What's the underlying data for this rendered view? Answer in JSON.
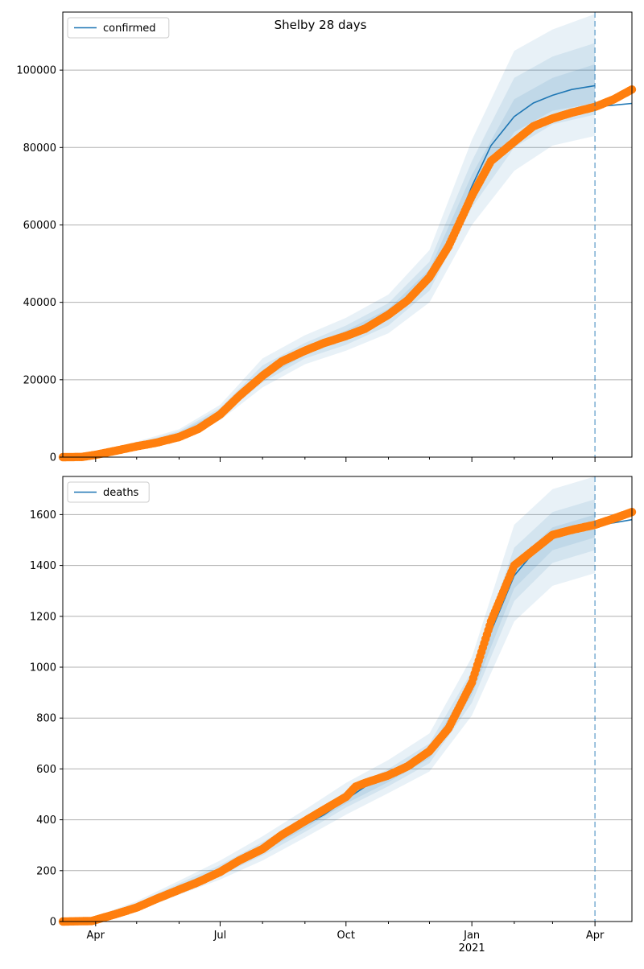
{
  "figure": {
    "title": "Shelby 28 days"
  },
  "chart_data": [
    {
      "type": "line",
      "legend": "confirmed",
      "legend_loc": "upper-left",
      "grid": "y-major",
      "ylim": [
        0,
        115000
      ],
      "yticks": [
        0,
        20000,
        40000,
        60000,
        80000,
        100000
      ],
      "xlim": [
        "2020-03-08",
        "2021-04-28"
      ],
      "forecast_start": "2021-04-01",
      "series": [
        {
          "name": "confirmed",
          "role": "model-median",
          "color": "#1f77b4",
          "points": [
            [
              "2020-03-08",
              0
            ],
            [
              "2020-04-01",
              700
            ],
            [
              "2020-05-01",
              3200
            ],
            [
              "2020-06-01",
              6000
            ],
            [
              "2020-06-15",
              8000
            ],
            [
              "2020-07-01",
              11500
            ],
            [
              "2020-07-15",
              16000
            ],
            [
              "2020-08-01",
              21000
            ],
            [
              "2020-08-15",
              24500
            ],
            [
              "2020-09-01",
              27200
            ],
            [
              "2020-09-15",
              29200
            ],
            [
              "2020-10-01",
              31500
            ],
            [
              "2020-10-15",
              33700
            ],
            [
              "2020-11-01",
              36800
            ],
            [
              "2020-11-15",
              40500
            ],
            [
              "2020-12-01",
              46500
            ],
            [
              "2020-12-15",
              55000
            ],
            [
              "2021-01-01",
              70000
            ],
            [
              "2021-01-15",
              80500
            ],
            [
              "2021-02-01",
              88000
            ],
            [
              "2021-02-15",
              91500
            ],
            [
              "2021-03-01",
              93500
            ],
            [
              "2021-03-15",
              95000
            ],
            [
              "2021-04-01",
              96000
            ]
          ]
        },
        {
          "name": "confirmed-forecast",
          "role": "forecast",
          "color": "#1f77b4",
          "points": [
            [
              "2021-04-01",
              90500
            ],
            [
              "2021-04-28",
              91400
            ]
          ]
        },
        {
          "name": "confirmed-observed",
          "role": "observed",
          "color": "#ff7f0e",
          "points": [
            [
              "2020-03-08",
              0
            ],
            [
              "2020-03-22",
              50
            ],
            [
              "2020-04-01",
              600
            ],
            [
              "2020-04-15",
              1600
            ],
            [
              "2020-05-01",
              2800
            ],
            [
              "2020-05-15",
              3700
            ],
            [
              "2020-06-01",
              5200
            ],
            [
              "2020-06-15",
              7300
            ],
            [
              "2020-07-01",
              11000
            ],
            [
              "2020-07-15",
              15800
            ],
            [
              "2020-08-01",
              21000
            ],
            [
              "2020-08-15",
              24700
            ],
            [
              "2020-09-01",
              27500
            ],
            [
              "2020-09-15",
              29500
            ],
            [
              "2020-10-01",
              31300
            ],
            [
              "2020-10-15",
              33200
            ],
            [
              "2020-11-01",
              36800
            ],
            [
              "2020-11-15",
              40500
            ],
            [
              "2020-12-01",
              46500
            ],
            [
              "2020-12-15",
              54500
            ],
            [
              "2021-01-01",
              67500
            ],
            [
              "2021-01-15",
              76500
            ],
            [
              "2021-02-01",
              81500
            ],
            [
              "2021-02-15",
              85500
            ],
            [
              "2021-03-01",
              87500
            ],
            [
              "2021-03-15",
              89000
            ],
            [
              "2021-04-01",
              90500
            ],
            [
              "2021-04-15",
              92500
            ],
            [
              "2021-04-28",
              95000
            ]
          ]
        }
      ],
      "bands": [
        {
          "opacity": 0.1,
          "points": [
            [
              "2020-03-08",
              0,
              100
            ],
            [
              "2020-04-01",
              500,
              900
            ],
            [
              "2020-05-01",
              2500,
              4000
            ],
            [
              "2020-06-01",
              4800,
              7200
            ],
            [
              "2020-07-01",
              9500,
              13500
            ],
            [
              "2020-08-01",
              18000,
              25500
            ],
            [
              "2020-09-01",
              24000,
              31500
            ],
            [
              "2020-10-01",
              27500,
              36000
            ],
            [
              "2020-11-01",
              32000,
              42000
            ],
            [
              "2020-12-01",
              40000,
              53500
            ],
            [
              "2021-01-01",
              60000,
              82000
            ],
            [
              "2021-02-01",
              74000,
              105000
            ],
            [
              "2021-03-01",
              80500,
              110500
            ],
            [
              "2021-04-01",
              83000,
              114500
            ]
          ]
        },
        {
          "opacity": 0.1,
          "points": [
            [
              "2020-03-08",
              0,
              80
            ],
            [
              "2020-04-01",
              560,
              840
            ],
            [
              "2020-05-01",
              2800,
              3600
            ],
            [
              "2020-06-01",
              5300,
              6700
            ],
            [
              "2020-07-01",
              10300,
              12700
            ],
            [
              "2020-08-01",
              19300,
              23700
            ],
            [
              "2020-09-01",
              25500,
              29500
            ],
            [
              "2020-10-01",
              29000,
              34000
            ],
            [
              "2020-11-01",
              34000,
              39800
            ],
            [
              "2020-12-01",
              43000,
              50500
            ],
            [
              "2021-01-01",
              64500,
              76500
            ],
            [
              "2021-02-01",
              80000,
              98000
            ],
            [
              "2021-03-01",
              86000,
              103500
            ],
            [
              "2021-04-01",
              88500,
              107000
            ]
          ]
        },
        {
          "opacity": 0.1,
          "points": [
            [
              "2020-03-08",
              0,
              60
            ],
            [
              "2020-04-01",
              620,
              780
            ],
            [
              "2020-05-01",
              3000,
              3400
            ],
            [
              "2020-06-01",
              5650,
              6350
            ],
            [
              "2020-07-01",
              10900,
              12100
            ],
            [
              "2020-08-01",
              20200,
              22500
            ],
            [
              "2020-09-01",
              26400,
              28500
            ],
            [
              "2020-10-01",
              30400,
              32700
            ],
            [
              "2020-11-01",
              35500,
              38300
            ],
            [
              "2020-12-01",
              44800,
              48500
            ],
            [
              "2021-01-01",
              67000,
              73000
            ],
            [
              "2021-02-01",
              84000,
              92500
            ],
            [
              "2021-03-01",
              89500,
              98000
            ],
            [
              "2021-04-01",
              91500,
              101500
            ]
          ]
        }
      ]
    },
    {
      "type": "line",
      "legend": "deaths",
      "legend_loc": "upper-left",
      "grid": "y-major",
      "ylim": [
        0,
        1750
      ],
      "yticks": [
        0,
        200,
        400,
        600,
        800,
        1000,
        1200,
        1400,
        1600
      ],
      "xlim": [
        "2020-03-08",
        "2021-04-28"
      ],
      "xticks_major": [
        "Apr",
        "Jul",
        "Oct",
        "Jan",
        "Apr"
      ],
      "xtick_year": "2021",
      "forecast_start": "2021-04-01",
      "series": [
        {
          "name": "deaths",
          "role": "model-median",
          "color": "#1f77b4",
          "points": [
            [
              "2020-03-08",
              0
            ],
            [
              "2020-03-29",
              3
            ],
            [
              "2020-04-15",
              30
            ],
            [
              "2020-05-01",
              60
            ],
            [
              "2020-05-15",
              95
            ],
            [
              "2020-06-01",
              135
            ],
            [
              "2020-06-15",
              165
            ],
            [
              "2020-07-01",
              200
            ],
            [
              "2020-07-15",
              240
            ],
            [
              "2020-08-01",
              285
            ],
            [
              "2020-08-15",
              330
            ],
            [
              "2020-09-01",
              380
            ],
            [
              "2020-09-15",
              420
            ],
            [
              "2020-10-01",
              480
            ],
            [
              "2020-10-15",
              530
            ],
            [
              "2020-11-01",
              565
            ],
            [
              "2020-11-15",
              600
            ],
            [
              "2020-12-01",
              660
            ],
            [
              "2020-12-15",
              740
            ],
            [
              "2021-01-01",
              920
            ],
            [
              "2021-01-15",
              1140
            ],
            [
              "2021-02-01",
              1360
            ],
            [
              "2021-02-15",
              1450
            ],
            [
              "2021-03-01",
              1505
            ],
            [
              "2021-03-15",
              1535
            ],
            [
              "2021-04-01",
              1555
            ]
          ]
        },
        {
          "name": "deaths-forecast",
          "role": "forecast",
          "color": "#1f77b4",
          "points": [
            [
              "2021-04-01",
              1555
            ],
            [
              "2021-04-28",
              1580
            ]
          ]
        },
        {
          "name": "deaths-observed",
          "role": "observed",
          "color": "#ff7f0e",
          "points": [
            [
              "2020-03-08",
              0
            ],
            [
              "2020-03-29",
              2
            ],
            [
              "2020-04-15",
              28
            ],
            [
              "2020-05-01",
              55
            ],
            [
              "2020-05-15",
              88
            ],
            [
              "2020-06-01",
              125
            ],
            [
              "2020-06-15",
              155
            ],
            [
              "2020-07-01",
              195
            ],
            [
              "2020-07-15",
              240
            ],
            [
              "2020-08-01",
              285
            ],
            [
              "2020-08-15",
              340
            ],
            [
              "2020-09-01",
              395
            ],
            [
              "2020-09-15",
              440
            ],
            [
              "2020-10-01",
              490
            ],
            [
              "2020-10-08",
              530
            ],
            [
              "2020-10-15",
              545
            ],
            [
              "2020-11-01",
              575
            ],
            [
              "2020-11-15",
              610
            ],
            [
              "2020-12-01",
              670
            ],
            [
              "2020-12-15",
              760
            ],
            [
              "2021-01-01",
              940
            ],
            [
              "2021-01-15",
              1180
            ],
            [
              "2021-02-01",
              1400
            ],
            [
              "2021-02-15",
              1460
            ],
            [
              "2021-03-01",
              1520
            ],
            [
              "2021-03-15",
              1540
            ],
            [
              "2021-04-01",
              1560
            ],
            [
              "2021-04-15",
              1585
            ],
            [
              "2021-04-28",
              1610
            ]
          ]
        }
      ],
      "bands": [
        {
          "opacity": 0.1,
          "points": [
            [
              "2020-03-08",
              0,
              2
            ],
            [
              "2020-04-01",
              0,
              20
            ],
            [
              "2020-05-01",
              40,
              80
            ],
            [
              "2020-06-01",
              105,
              160
            ],
            [
              "2020-07-01",
              165,
              240
            ],
            [
              "2020-08-01",
              240,
              335
            ],
            [
              "2020-09-01",
              330,
              440
            ],
            [
              "2020-10-01",
              420,
              545
            ],
            [
              "2020-11-01",
              505,
              635
            ],
            [
              "2020-12-01",
              590,
              740
            ],
            [
              "2021-01-01",
              810,
              1040
            ],
            [
              "2021-02-01",
              1180,
              1560
            ],
            [
              "2021-03-01",
              1320,
              1700
            ],
            [
              "2021-04-01",
              1370,
              1750
            ]
          ]
        },
        {
          "opacity": 0.1,
          "points": [
            [
              "2020-03-08",
              0,
              1
            ],
            [
              "2020-04-01",
              2,
              15
            ],
            [
              "2020-05-01",
              48,
              72
            ],
            [
              "2020-06-01",
              117,
              150
            ],
            [
              "2020-07-01",
              180,
              222
            ],
            [
              "2020-08-01",
              260,
              312
            ],
            [
              "2020-09-01",
              352,
              410
            ],
            [
              "2020-10-01",
              448,
              512
            ],
            [
              "2020-11-01",
              532,
              600
            ],
            [
              "2020-12-01",
              622,
              700
            ],
            [
              "2021-01-01",
              860,
              985
            ],
            [
              "2021-02-01",
              1260,
              1470
            ],
            [
              "2021-03-01",
              1410,
              1610
            ],
            [
              "2021-04-01",
              1460,
              1660
            ]
          ]
        },
        {
          "opacity": 0.1,
          "points": [
            [
              "2020-03-08",
              0,
              1
            ],
            [
              "2020-04-01",
              4,
              12
            ],
            [
              "2020-05-01",
              54,
              66
            ],
            [
              "2020-06-01",
              127,
              143
            ],
            [
              "2020-07-01",
              190,
              210
            ],
            [
              "2020-08-01",
              273,
              297
            ],
            [
              "2020-09-01",
              366,
              394
            ],
            [
              "2020-10-01",
              464,
              496
            ],
            [
              "2020-11-01",
              548,
              582
            ],
            [
              "2020-12-01",
              641,
              679
            ],
            [
              "2021-01-01",
              890,
              950
            ],
            [
              "2021-02-01",
              1310,
              1410
            ],
            [
              "2021-03-01",
              1460,
              1550
            ],
            [
              "2021-04-01",
              1510,
              1600
            ]
          ]
        }
      ]
    }
  ]
}
